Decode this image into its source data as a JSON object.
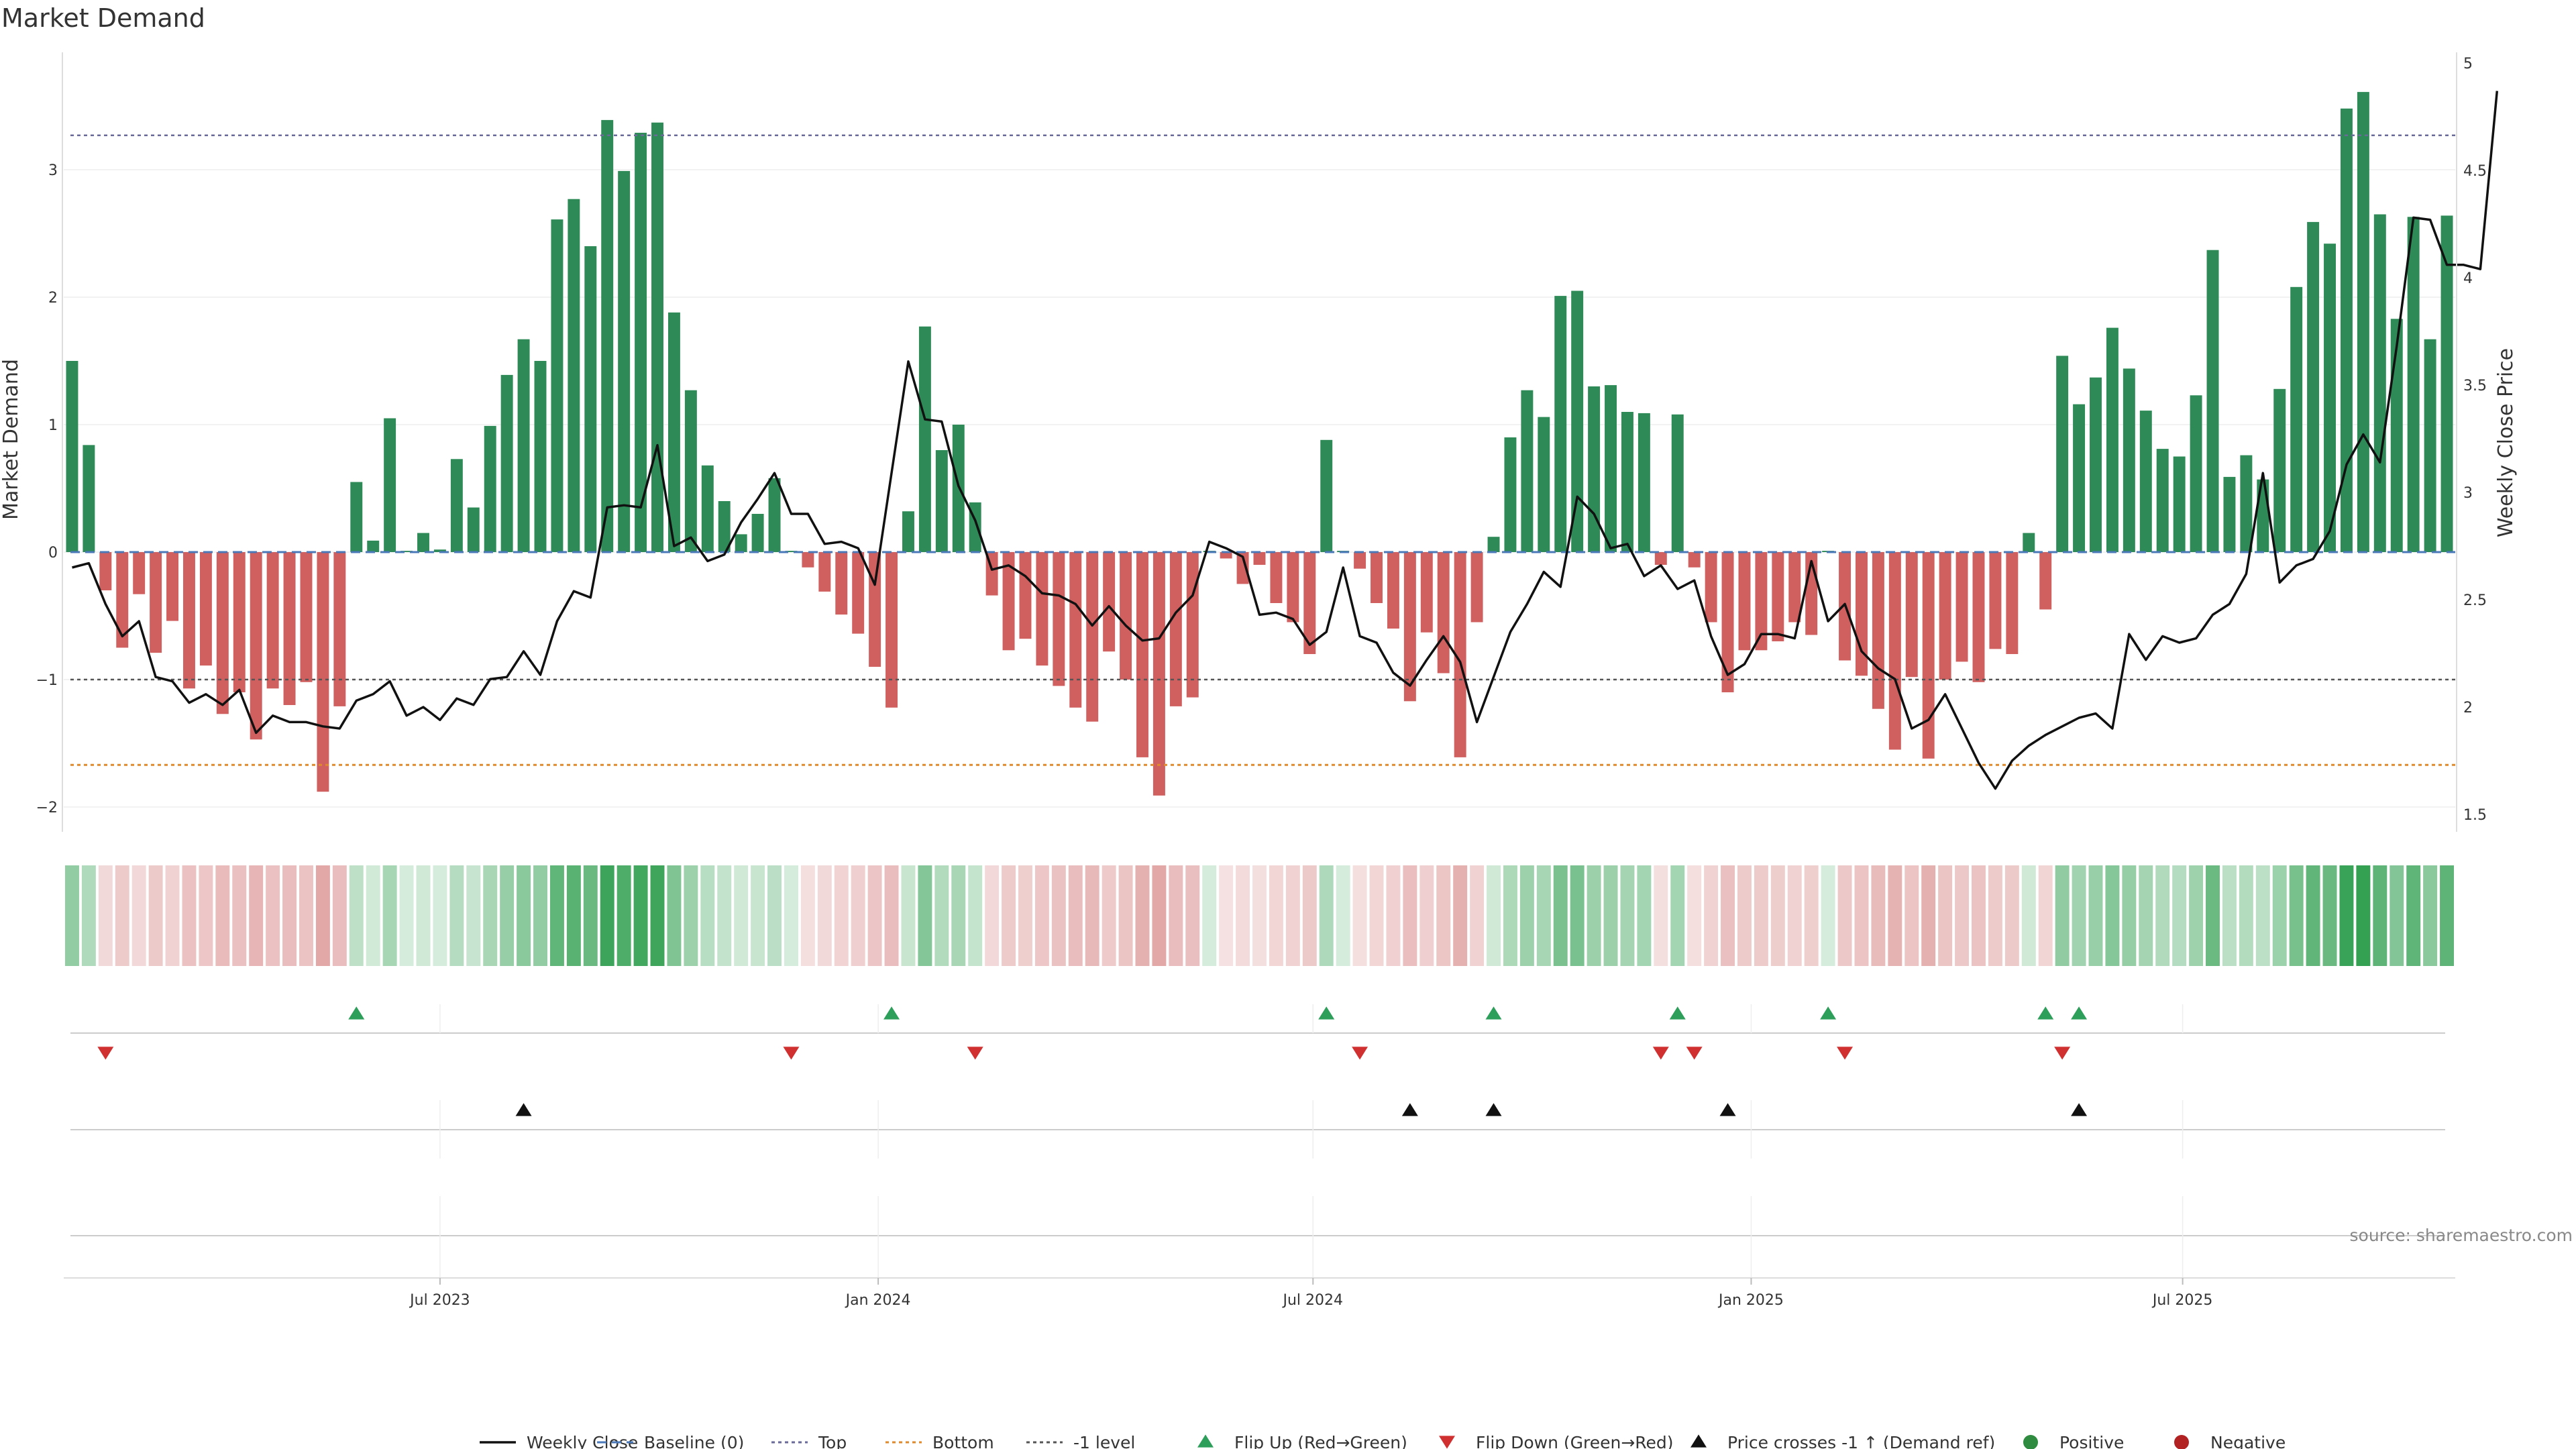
{
  "chart_data": {
    "type": "bar",
    "title": "Market Demand",
    "ylabel_left": "Market Demand",
    "ylabel_right": "Weekly Close Price",
    "ylim_left": [
      -2.1,
      3.9
    ],
    "ylim_right": [
      1.5,
      5.0
    ],
    "yticks_left": [
      -2,
      -1,
      0,
      1,
      2,
      3
    ],
    "yticks_left_labels": [
      "−2",
      "−1",
      "0",
      "1",
      "2",
      "3"
    ],
    "yticks_right": [
      1.5,
      2,
      2.5,
      3,
      3.5,
      4,
      4.5,
      5
    ],
    "yticks_right_labels": [
      "1.5",
      "2",
      "2.5",
      "3",
      "3.5",
      "4",
      "4.5",
      "5"
    ],
    "x_start": "2023-01-09",
    "x_ticks": [
      {
        "label": "Jul 2023",
        "index": 22
      },
      {
        "label": "Jan 2024",
        "index": 48.2
      },
      {
        "label": "Jul 2024",
        "index": 74.2
      },
      {
        "label": "Jan 2025",
        "index": 100.4
      },
      {
        "label": "Jul 2025",
        "index": 126.2
      }
    ],
    "reference_lines": {
      "top": 3.27,
      "bottom": -1.67,
      "minus_one": -1.0,
      "baseline": 0
    },
    "demand": [
      1.5,
      0.84,
      -0.3,
      -0.75,
      -0.33,
      -0.79,
      -0.54,
      -1.07,
      -0.89,
      -1.27,
      -1.1,
      -1.47,
      -1.07,
      -1.2,
      -1.02,
      -1.88,
      -1.21,
      0.55,
      0.09,
      1.05,
      0.01,
      0.15,
      0.02,
      0.73,
      0.35,
      0.99,
      1.39,
      1.67,
      1.5,
      2.61,
      2.77,
      2.4,
      3.39,
      2.99,
      3.29,
      3.37,
      1.88,
      1.27,
      0.68,
      0.4,
      0.14,
      0.3,
      0.58,
      0.01,
      -0.12,
      -0.31,
      -0.49,
      -0.64,
      -0.9,
      -1.22,
      0.32,
      1.77,
      0.8,
      1.0,
      0.39,
      -0.34,
      -0.77,
      -0.68,
      -0.89,
      -1.05,
      -1.22,
      -1.33,
      -0.78,
      -1.0,
      -1.61,
      -1.91,
      -1.21,
      -1.14,
      0.01,
      -0.05,
      -0.25,
      -0.1,
      -0.4,
      -0.55,
      -0.8,
      0.88,
      0.01,
      -0.13,
      -0.4,
      -0.6,
      -1.17,
      -0.63,
      -0.95,
      -1.61,
      -0.55,
      0.12,
      0.9,
      1.27,
      1.06,
      2.01,
      2.05,
      1.3,
      1.31,
      1.1,
      1.09,
      -0.1,
      1.08,
      -0.12,
      -0.55,
      -1.1,
      -0.77,
      -0.77,
      -0.7,
      -0.55,
      -0.65,
      0.01,
      -0.85,
      -0.97,
      -1.23,
      -1.55,
      -0.98,
      -1.62,
      -1.0,
      -0.86,
      -1.02,
      -0.76,
      -0.8,
      0.15,
      -0.45,
      1.54,
      1.16,
      1.37,
      1.76,
      1.44,
      1.11,
      0.81,
      0.75,
      1.23,
      2.37,
      0.59,
      0.76,
      0.57,
      1.28,
      2.08,
      2.59,
      2.42,
      3.48,
      3.61,
      2.65,
      1.83,
      2.63,
      1.67,
      2.64
    ],
    "weekly_close": [
      2.65,
      2.67,
      2.48,
      2.33,
      2.4,
      2.14,
      2.12,
      2.02,
      2.06,
      2.01,
      2.08,
      1.88,
      1.96,
      1.93,
      1.93,
      1.91,
      1.9,
      2.03,
      2.06,
      2.12,
      1.96,
      2.0,
      1.94,
      2.04,
      2.01,
      2.13,
      2.14,
      2.26,
      2.15,
      2.4,
      2.54,
      2.51,
      2.93,
      2.94,
      2.93,
      3.22,
      2.75,
      2.79,
      2.68,
      2.71,
      2.86,
      2.97,
      3.09,
      2.9,
      2.9,
      2.76,
      2.77,
      2.74,
      2.57,
      3.09,
      3.61,
      3.34,
      3.33,
      3.03,
      2.87,
      2.64,
      2.66,
      2.61,
      2.53,
      2.52,
      2.48,
      2.38,
      2.47,
      2.38,
      2.31,
      2.32,
      2.44,
      2.52,
      2.77,
      2.74,
      2.7,
      2.43,
      2.44,
      2.41,
      2.29,
      2.35,
      2.65,
      2.33,
      2.3,
      2.16,
      2.1,
      2.22,
      2.33,
      2.21,
      1.93,
      2.14,
      2.35,
      2.48,
      2.63,
      2.56,
      2.98,
      2.9,
      2.74,
      2.76,
      2.61,
      2.66,
      2.55,
      2.59,
      2.33,
      2.15,
      2.2,
      2.34,
      2.34,
      2.32,
      2.68,
      2.4,
      2.48,
      2.26,
      2.18,
      2.13,
      1.9,
      1.94,
      2.06,
      1.9,
      1.74,
      1.62,
      1.75,
      1.82,
      1.87,
      1.91,
      1.95,
      1.97,
      1.9,
      2.34,
      2.22,
      2.33,
      2.3,
      2.32,
      2.43,
      2.48,
      2.62,
      3.09,
      2.58,
      2.66,
      2.69,
      2.82,
      3.13,
      3.27,
      3.14,
      3.68,
      4.28,
      4.27,
      4.06,
      4.06,
      4.04,
      4.87
    ],
    "flip_up_indices": [
      17,
      49,
      75,
      85,
      96,
      105,
      118,
      120
    ],
    "flip_down_indices": [
      2,
      43,
      54,
      77,
      95,
      97,
      106,
      119
    ],
    "price_cross_indices": [
      27,
      80,
      85,
      99,
      120
    ],
    "legend": [
      {
        "label": "Weekly Close",
        "kind": "solid-line",
        "color": "#111111"
      },
      {
        "label": "Baseline (0)",
        "kind": "dashed-line",
        "color": "#4a78b8"
      },
      {
        "label": "Top",
        "kind": "dotted-line",
        "color": "#6a6a9a"
      },
      {
        "label": "Bottom",
        "kind": "dotted-line",
        "color": "#e08a2e"
      },
      {
        "label": "-1 level",
        "kind": "dotted-line",
        "color": "#555555"
      },
      {
        "label": "Flip Up (Red→Green)",
        "kind": "triangle-up",
        "color": "#2e9e5b"
      },
      {
        "label": "Flip Down (Green→Red)",
        "kind": "triangle-down",
        "color": "#d03030"
      },
      {
        "label": "Price crosses -1 ↑ (Demand ref)",
        "kind": "triangle-up",
        "color": "#111111"
      },
      {
        "label": "Positive",
        "kind": "dot",
        "color": "#2e8b3f"
      },
      {
        "label": "Negative",
        "kind": "dot",
        "color": "#b22222"
      }
    ],
    "source": "source: sharemaestro.com"
  },
  "colors": {
    "positive_bar": "#2e8b57",
    "negative_bar": "#d06060",
    "price_line": "#111111",
    "baseline": "#4a78b8",
    "top_line": "#6a6a9a",
    "bottom_line": "#e08a2e",
    "minus_one_line": "#555555",
    "flip_up": "#2e9e5b",
    "flip_down": "#d03030",
    "price_cross": "#111111",
    "heat_positive": "#2f9e4f",
    "heat_negative": "#d07070"
  }
}
